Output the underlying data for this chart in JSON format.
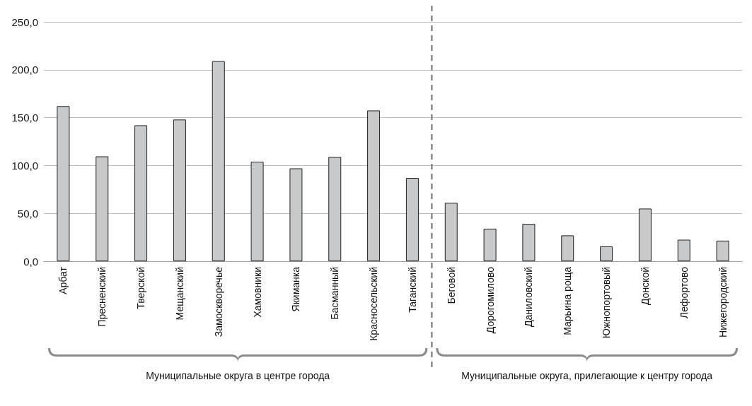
{
  "chart_data": {
    "type": "bar",
    "categories": [
      "Арбат",
      "Пресненский",
      "Тверской",
      "Мещанский",
      "Замоскворечье",
      "Хамовники",
      "Якиманка",
      "Басманный",
      "Красносельский",
      "Таганский",
      "Беговой",
      "Дорогомилово",
      "Даниловский",
      "Марьина роща",
      "Южнопортовый",
      "Донской",
      "Лефортово",
      "Нижегородский"
    ],
    "values": [
      162,
      109.5,
      142,
      148,
      209,
      104,
      97,
      109,
      157.5,
      87,
      61,
      34,
      39,
      27,
      15.5,
      55,
      22.5,
      21.5
    ],
    "color": "#c8c9cb",
    "ylim": [
      0,
      250
    ],
    "yticks": [
      {
        "value": 0,
        "label": "0,0"
      },
      {
        "value": 50,
        "label": "50,0"
      },
      {
        "value": 100,
        "label": "100,0"
      },
      {
        "value": 150,
        "label": "150,0"
      },
      {
        "value": 200,
        "label": "200,0"
      },
      {
        "value": 250,
        "label": "250,0"
      }
    ],
    "grid": "y",
    "ref_lines": [
      {
        "axis": "x",
        "value": "Беговой",
        "color": "#8a8a8a",
        "line_style": "dashed"
      }
    ],
    "annotations": [
      "Муниципальные округа в центре города",
      "Муниципальные округа, прилегающие к центру города"
    ]
  }
}
